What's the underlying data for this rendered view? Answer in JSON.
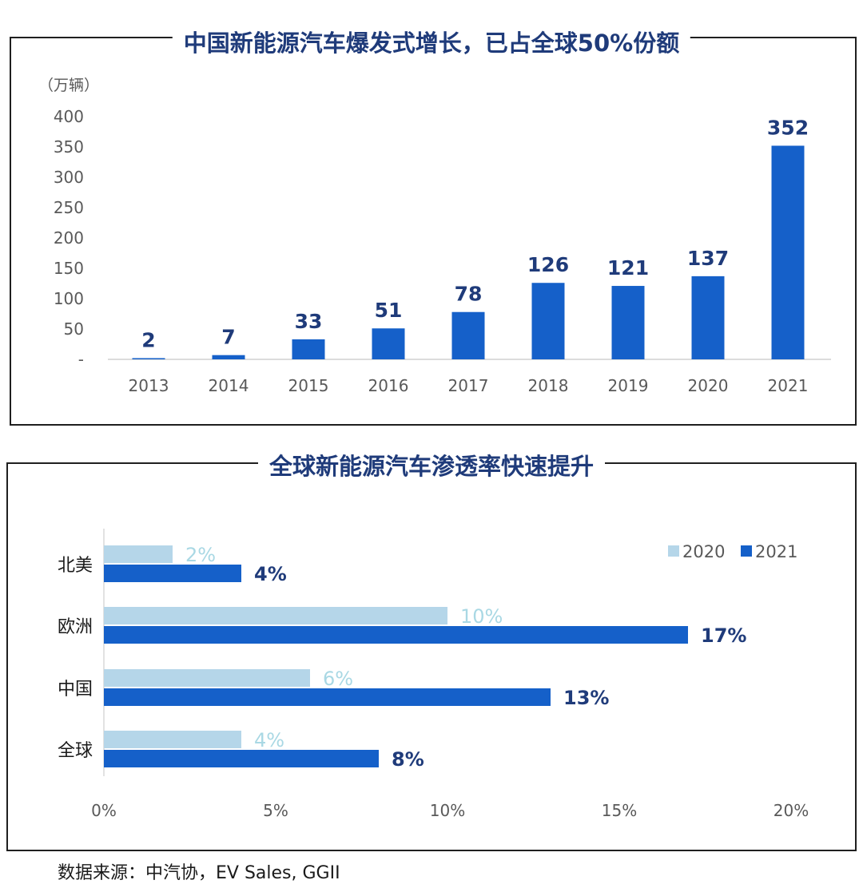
{
  "titles": {
    "top": "中国新能源汽车爆发式增长，已占全球50%份额",
    "bottom": "全球新能源汽车渗透率快速提升"
  },
  "source": "数据来源：中汽协，EV Sales, GGII",
  "colors": {
    "dark": "#1560c9",
    "light": "#b5d6e9",
    "title": "#1f3b7a"
  },
  "chart_data": [
    {
      "type": "bar",
      "title": "中国新能源汽车爆发式增长，已占全球50%份额",
      "unit_label": "（万辆）",
      "categories": [
        "2013",
        "2014",
        "2015",
        "2016",
        "2017",
        "2018",
        "2019",
        "2020",
        "2021"
      ],
      "values": [
        2,
        7,
        33,
        51,
        78,
        126,
        121,
        137,
        352
      ],
      "y_ticks": [
        "-",
        "50",
        "100",
        "150",
        "200",
        "250",
        "300",
        "350",
        "400"
      ],
      "ylim": [
        0,
        400
      ],
      "grid": false
    },
    {
      "type": "bar",
      "orientation": "horizontal",
      "title": "全球新能源汽车渗透率快速提升",
      "categories": [
        "北美",
        "欧洲",
        "中国",
        "全球"
      ],
      "series": [
        {
          "name": "2020",
          "values": [
            2,
            10,
            6,
            4
          ],
          "labels": [
            "2%",
            "10%",
            "6%",
            "4%"
          ]
        },
        {
          "name": "2021",
          "values": [
            4,
            17,
            13,
            8
          ],
          "labels": [
            "4%",
            "17%",
            "13%",
            "8%"
          ]
        }
      ],
      "x_ticks": [
        "0%",
        "5%",
        "10%",
        "15%",
        "20%"
      ],
      "xlim": [
        0,
        20
      ],
      "legend": "top-right",
      "grid": false
    }
  ]
}
